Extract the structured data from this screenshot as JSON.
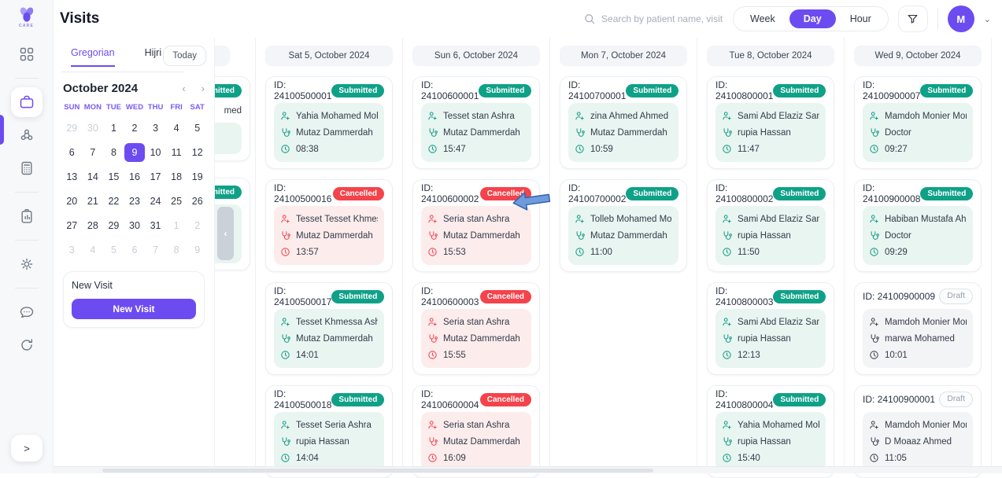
{
  "brand": {
    "name": "CARE"
  },
  "header": {
    "title": "Visits",
    "search": {
      "placeholder": "Search by patient name, visit id"
    },
    "view_toggle": {
      "options": [
        "Week",
        "Day",
        "Hour"
      ],
      "active": "Day"
    },
    "user": {
      "initial": "M"
    }
  },
  "icons": {
    "brand": "flower-logo-icon",
    "header": [
      "search-icon",
      "funnel-icon",
      "chevron-down-icon"
    ],
    "card_rows": [
      "patient-add-icon",
      "stethoscope-icon",
      "clock-icon"
    ]
  },
  "sidebar": {
    "items": [
      {
        "name": "dashboard",
        "active": false
      },
      {
        "name": "visits",
        "active": true
      },
      {
        "name": "community",
        "active": false
      },
      {
        "name": "billing",
        "active": false
      },
      {
        "name": "reports",
        "active": false
      },
      {
        "name": "settings",
        "active": false
      },
      {
        "name": "messages",
        "active": false
      },
      {
        "name": "refresh",
        "active": false
      }
    ],
    "collapse_chevron": ">"
  },
  "calendar": {
    "tabs": [
      {
        "label": "Gregorian",
        "active": true
      },
      {
        "label": "Hijri",
        "active": false
      }
    ],
    "today_label": "Today",
    "month_label": "October 2024",
    "prev_glyph": "‹",
    "next_glyph": "›",
    "weekdays": [
      "SUN",
      "MON",
      "TUE",
      "WED",
      "THU",
      "FRI",
      "SAT"
    ],
    "days": [
      {
        "label": "29",
        "muted": true
      },
      {
        "label": "30",
        "muted": true
      },
      {
        "label": "1"
      },
      {
        "label": "2"
      },
      {
        "label": "3"
      },
      {
        "label": "4"
      },
      {
        "label": "5"
      },
      {
        "label": "6"
      },
      {
        "label": "7"
      },
      {
        "label": "8"
      },
      {
        "label": "9",
        "selected": true
      },
      {
        "label": "10"
      },
      {
        "label": "11"
      },
      {
        "label": "12"
      },
      {
        "label": "13"
      },
      {
        "label": "14"
      },
      {
        "label": "15"
      },
      {
        "label": "16"
      },
      {
        "label": "17"
      },
      {
        "label": "18"
      },
      {
        "label": "19"
      },
      {
        "label": "20"
      },
      {
        "label": "21"
      },
      {
        "label": "22"
      },
      {
        "label": "23"
      },
      {
        "label": "24"
      },
      {
        "label": "25"
      },
      {
        "label": "26"
      },
      {
        "label": "27"
      },
      {
        "label": "28"
      },
      {
        "label": "29"
      },
      {
        "label": "30"
      },
      {
        "label": "31"
      },
      {
        "label": "1",
        "muted": true
      },
      {
        "label": "2",
        "muted": true
      },
      {
        "label": "3",
        "muted": true
      },
      {
        "label": "4",
        "muted": true
      },
      {
        "label": "5",
        "muted": true
      },
      {
        "label": "6",
        "muted": true
      },
      {
        "label": "7",
        "muted": true
      },
      {
        "label": "8",
        "muted": true
      },
      {
        "label": "9",
        "muted": true
      }
    ],
    "new_visit": {
      "title": "New Visit",
      "button_label": "New Visit"
    },
    "handle_glyph": "‹"
  },
  "board": {
    "id_prefix": "ID:",
    "partial_column": {
      "visits": [
        {
          "status": "Submitted",
          "patient_fragment": "med"
        },
        {
          "status": "Submitted"
        }
      ]
    },
    "columns": [
      {
        "date": "Sat 5, October 2024",
        "visits": [
          {
            "id": "24100500001",
            "status": "Submitted",
            "patient": "Yahia Mohamed Mohamed",
            "doctor": "Mutaz Dammerdah",
            "time": "08:38"
          },
          {
            "id": "24100500016",
            "status": "Cancelled",
            "patient": "Tesset Tesset Khmessa ...",
            "doctor": "Mutaz Dammerdah",
            "time": "13:57"
          },
          {
            "id": "24100500017",
            "status": "Submitted",
            "patient": "Tesset Khmessa Ashra",
            "doctor": "Mutaz Dammerdah",
            "time": "14:01"
          },
          {
            "id": "24100500018",
            "status": "Submitted",
            "patient": "Tesset Seria Ashra",
            "doctor": "rupia Hassan",
            "time": "14:04"
          }
        ]
      },
      {
        "date": "Sun 6, October 2024",
        "visits": [
          {
            "id": "24100600001",
            "status": "Submitted",
            "patient": "Tesset stan Ashra",
            "doctor": "Mutaz Dammerdah",
            "time": "15:47"
          },
          {
            "id": "24100600002",
            "status": "Cancelled",
            "patient": "Seria stan Ashra",
            "doctor": "Mutaz Dammerdah",
            "time": "15:53"
          },
          {
            "id": "24100600003",
            "status": "Cancelled",
            "patient": "Seria stan Ashra",
            "doctor": "Mutaz Dammerdah",
            "time": "15:55"
          },
          {
            "id": "24100600004",
            "status": "Cancelled",
            "patient": "Seria stan Ashra",
            "doctor": "Mutaz Dammerdah",
            "time": "16:09"
          }
        ]
      },
      {
        "date": "Mon 7, October 2024",
        "visits": [
          {
            "id": "24100700001",
            "status": "Submitted",
            "patient": "zina Ahmed Ahmed",
            "doctor": "Mutaz Dammerdah",
            "time": "10:59"
          },
          {
            "id": "24100700002",
            "status": "Submitted",
            "patient": "Tolleb Mohamed Moham...",
            "doctor": "Mutaz Dammerdah",
            "time": "11:00"
          }
        ]
      },
      {
        "date": "Tue 8, October 2024",
        "visits": [
          {
            "id": "24100800001",
            "status": "Submitted",
            "patient": "Sami Abd Elaziz Sami",
            "doctor": "rupia Hassan",
            "time": "11:47"
          },
          {
            "id": "24100800002",
            "status": "Submitted",
            "patient": "Sami Abd Elaziz Sami",
            "doctor": "rupia Hassan",
            "time": "11:50"
          },
          {
            "id": "24100800003",
            "status": "Submitted",
            "patient": "Sami Abd Elaziz Sami",
            "doctor": "rupia Hassan",
            "time": "12:13"
          },
          {
            "id": "24100800004",
            "status": "Submitted",
            "patient": "Yahia Mohamed Mohamed",
            "doctor": "rupia Hassan",
            "time": "15:40"
          }
        ]
      },
      {
        "date": "Wed 9, October 2024",
        "visits": [
          {
            "id": "24100900007",
            "status": "Submitted",
            "patient": "Mamdoh Monier Monier",
            "doctor": "Doctor",
            "time": "09:27"
          },
          {
            "id": "24100900008",
            "status": "Submitted",
            "patient": "Habiban Mustafa Ahmed",
            "doctor": "Doctor",
            "time": "09:29"
          },
          {
            "id": "24100900009",
            "status": "Draft",
            "patient": "Mamdoh Monier Monier",
            "doctor": "marwa Mohamed",
            "time": "10:01"
          },
          {
            "id": "24100900001",
            "status": "Draft",
            "patient": "Mamdoh Monier Monier",
            "doctor": "D Moaaz Ahmed",
            "time": "11:05"
          }
        ]
      }
    ]
  },
  "annotation": {
    "type": "left-arrow",
    "fill": "#6F9BDD",
    "stroke": "#2E66B2"
  },
  "colors": {
    "accent": "#6C4CF1",
    "submitted": "#0FA188",
    "submitted_bg": "#E9F5F1",
    "cancelled": "#F4434B",
    "cancelled_bg": "#FDECEC",
    "draft_text": "#97A0AC",
    "draft_bg": "#F3F4F6"
  }
}
